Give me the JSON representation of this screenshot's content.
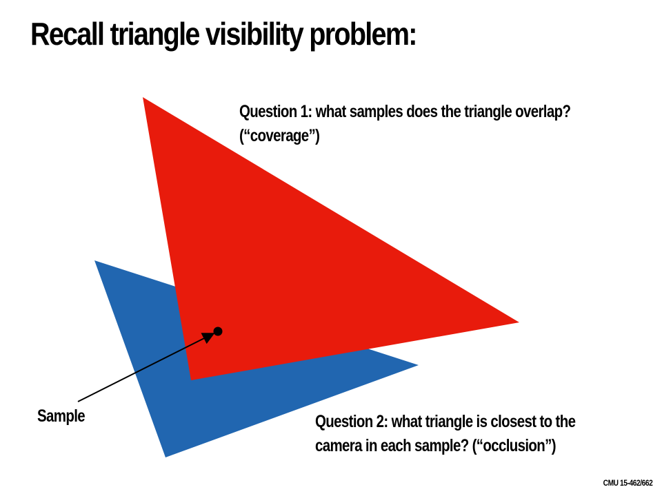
{
  "title": "Recall triangle visibility problem:",
  "question1": {
    "line1": "Question 1: what samples does the triangle overlap?",
    "line2": "(“coverage”)"
  },
  "question2": {
    "line1": "Question 2: what triangle is closest to the",
    "line2": "camera in each sample? (“occlusion”)"
  },
  "sample_label": "Sample",
  "footer": "CMU 15-462/662",
  "colors": {
    "red_triangle": "#e81b0c",
    "blue_triangle": "#2166b0",
    "sample_point": "#000000",
    "arrow": "#000000"
  }
}
